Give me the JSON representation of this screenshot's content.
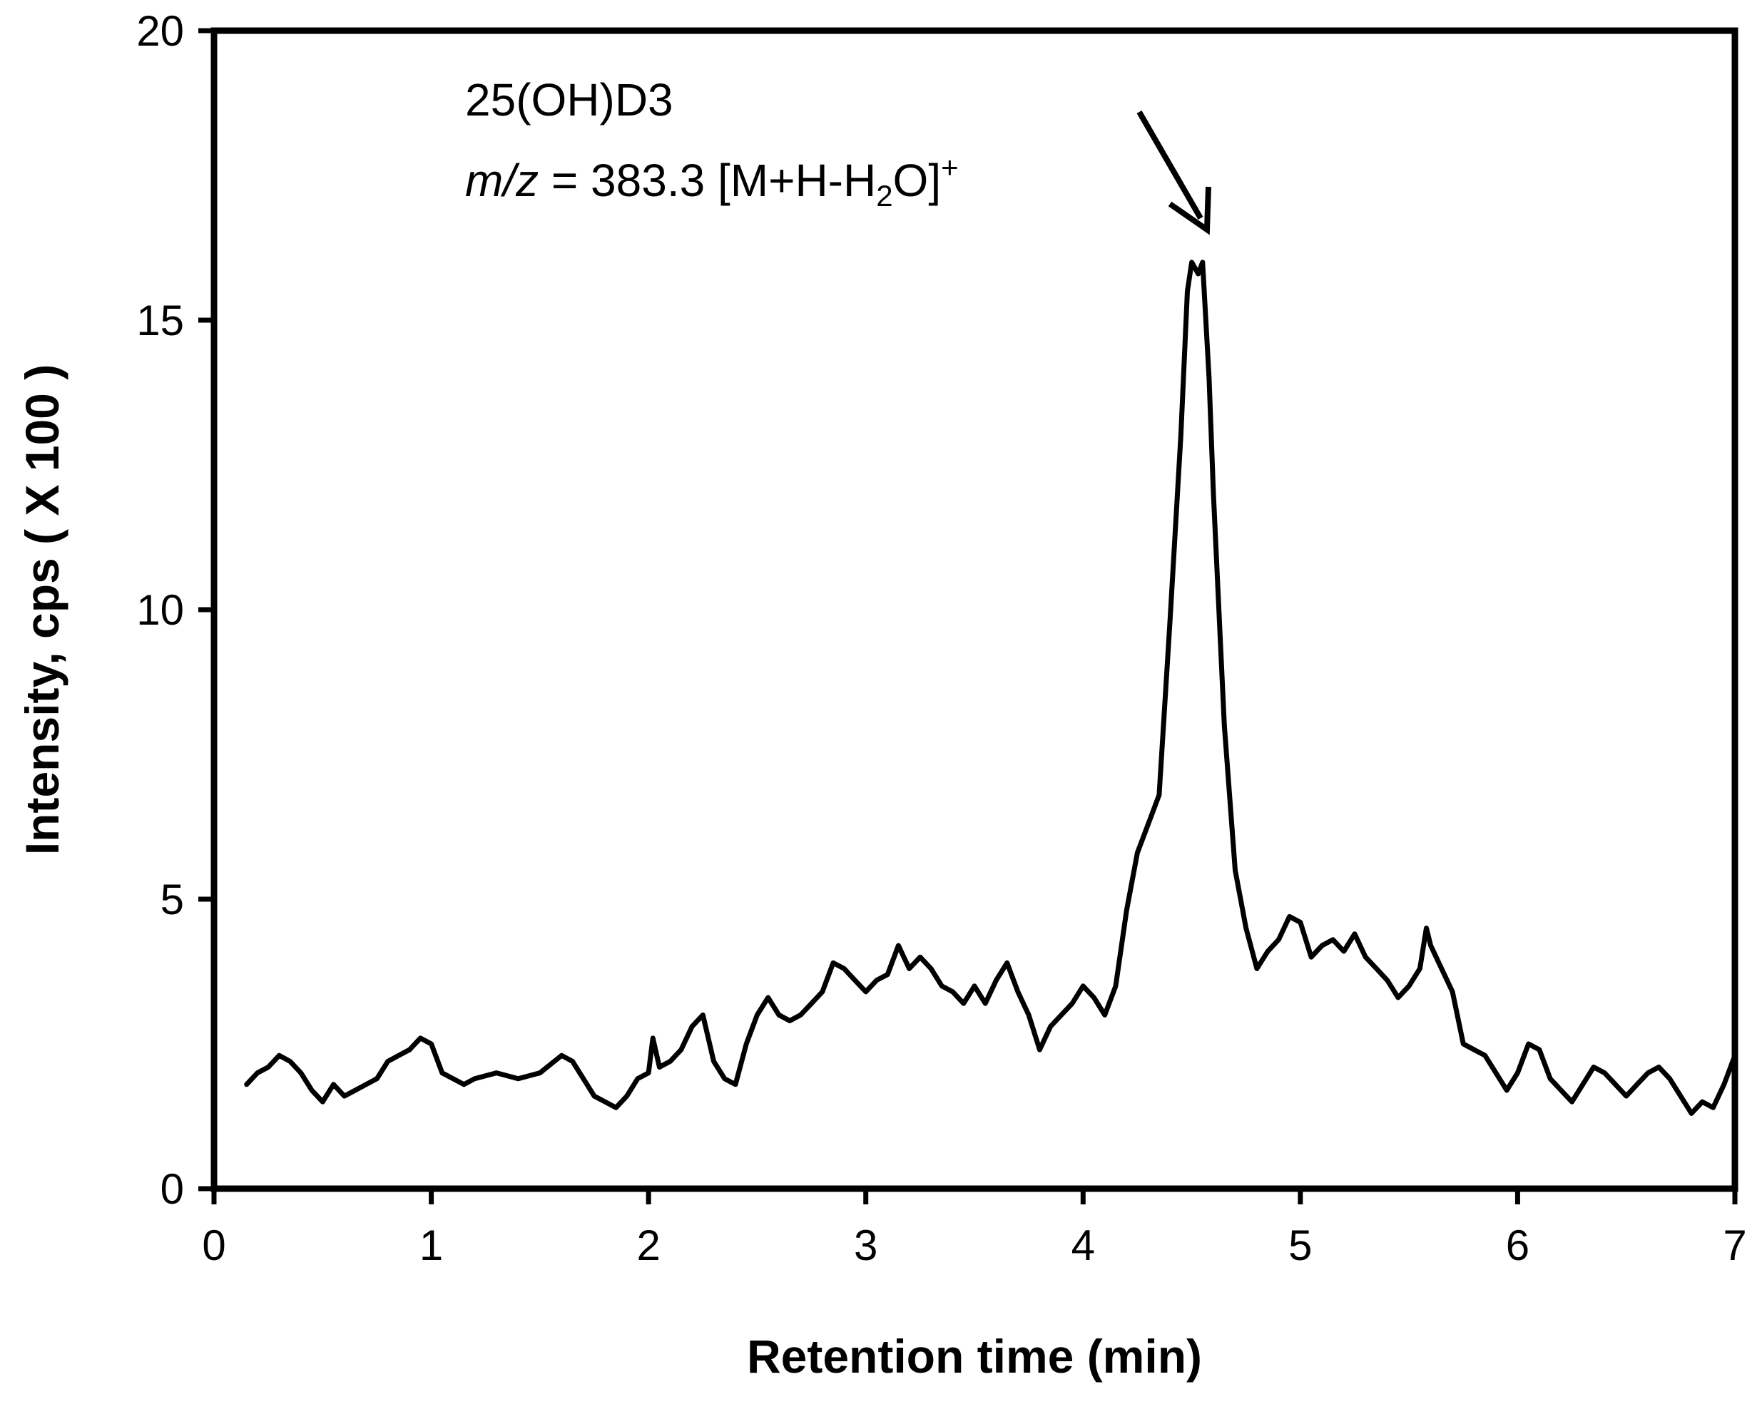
{
  "chart_data": {
    "type": "line",
    "title": "",
    "xlabel": "Retention time (min)",
    "ylabel": "Intensity, cps ( X 100 )",
    "xlim": [
      0,
      7
    ],
    "ylim": [
      0,
      20
    ],
    "x_ticks": [
      "0",
      "1",
      "2",
      "3",
      "4",
      "5",
      "6",
      "7"
    ],
    "y_ticks": [
      "0",
      "5",
      "10",
      "15",
      "20"
    ],
    "grid": false,
    "legend": "none",
    "line_color": "#000000",
    "annotation": {
      "line1": "25(OH)D3",
      "mz_label": "m/z",
      "mz_value": " = 383.3 [M+H-H",
      "subscript": "2",
      "tail": "O]",
      "superscript": "+",
      "points_to": [
        4.55,
        16.0
      ]
    },
    "series": [
      {
        "x": [
          0.15,
          0.2,
          0.25,
          0.3,
          0.35,
          0.4,
          0.45,
          0.5,
          0.55,
          0.6,
          0.65,
          0.7,
          0.75,
          0.8,
          0.85,
          0.9,
          0.95,
          1.0,
          1.05,
          1.1,
          1.15,
          1.2,
          1.3,
          1.4,
          1.5,
          1.6,
          1.65,
          1.7,
          1.75,
          1.8,
          1.85,
          1.9,
          1.95,
          2.0,
          2.02,
          2.05,
          2.1,
          2.15,
          2.2,
          2.25,
          2.3,
          2.35,
          2.4,
          2.45,
          2.5,
          2.55,
          2.6,
          2.65,
          2.7,
          2.75,
          2.8,
          2.85,
          2.9,
          2.95,
          3.0,
          3.05,
          3.1,
          3.15,
          3.2,
          3.25,
          3.3,
          3.35,
          3.4,
          3.45,
          3.5,
          3.55,
          3.6,
          3.65,
          3.7,
          3.75,
          3.8,
          3.85,
          3.9,
          3.95,
          4.0,
          4.05,
          4.1,
          4.15,
          4.2,
          4.25,
          4.3,
          4.35,
          4.4,
          4.45,
          4.48,
          4.5,
          4.53,
          4.55,
          4.58,
          4.6,
          4.65,
          4.7,
          4.75,
          4.8,
          4.85,
          4.9,
          4.95,
          5.0,
          5.05,
          5.1,
          5.15,
          5.2,
          5.25,
          5.3,
          5.35,
          5.4,
          5.45,
          5.5,
          5.55,
          5.58,
          5.6,
          5.65,
          5.7,
          5.75,
          5.8,
          5.85,
          5.9,
          5.95,
          6.0,
          6.05,
          6.1,
          6.15,
          6.2,
          6.25,
          6.3,
          6.35,
          6.4,
          6.45,
          6.5,
          6.55,
          6.6,
          6.65,
          6.7,
          6.75,
          6.8,
          6.85,
          6.9,
          6.95,
          7.0
        ],
        "y": [
          1.8,
          2.0,
          2.1,
          2.3,
          2.2,
          2.0,
          1.7,
          1.5,
          1.8,
          1.6,
          1.7,
          1.8,
          1.9,
          2.2,
          2.3,
          2.4,
          2.6,
          2.5,
          2.0,
          1.9,
          1.8,
          1.9,
          2.0,
          1.9,
          2.0,
          2.3,
          2.2,
          1.9,
          1.6,
          1.5,
          1.4,
          1.6,
          1.9,
          2.0,
          2.6,
          2.1,
          2.2,
          2.4,
          2.8,
          3.0,
          2.2,
          1.9,
          1.8,
          2.5,
          3.0,
          3.3,
          3.0,
          2.9,
          3.0,
          3.2,
          3.4,
          3.9,
          3.8,
          3.6,
          3.4,
          3.6,
          3.7,
          4.2,
          3.8,
          4.0,
          3.8,
          3.5,
          3.4,
          3.2,
          3.5,
          3.2,
          3.6,
          3.9,
          3.4,
          3.0,
          2.4,
          2.8,
          3.0,
          3.2,
          3.5,
          3.3,
          3.0,
          3.5,
          4.8,
          5.8,
          6.3,
          6.8,
          9.8,
          13.0,
          15.5,
          16.0,
          15.8,
          16.0,
          14.0,
          12.0,
          8.0,
          5.5,
          4.5,
          3.8,
          4.1,
          4.3,
          4.7,
          4.6,
          4.0,
          4.2,
          4.3,
          4.1,
          4.4,
          4.0,
          3.8,
          3.6,
          3.3,
          3.5,
          3.8,
          4.5,
          4.2,
          3.8,
          3.4,
          2.5,
          2.4,
          2.3,
          2.0,
          1.7,
          2.0,
          2.5,
          2.4,
          1.9,
          1.7,
          1.5,
          1.8,
          2.1,
          2.0,
          1.8,
          1.6,
          1.8,
          2.0,
          2.1,
          1.9,
          1.6,
          1.3,
          1.5,
          1.4,
          1.8,
          2.3
        ]
      }
    ]
  }
}
